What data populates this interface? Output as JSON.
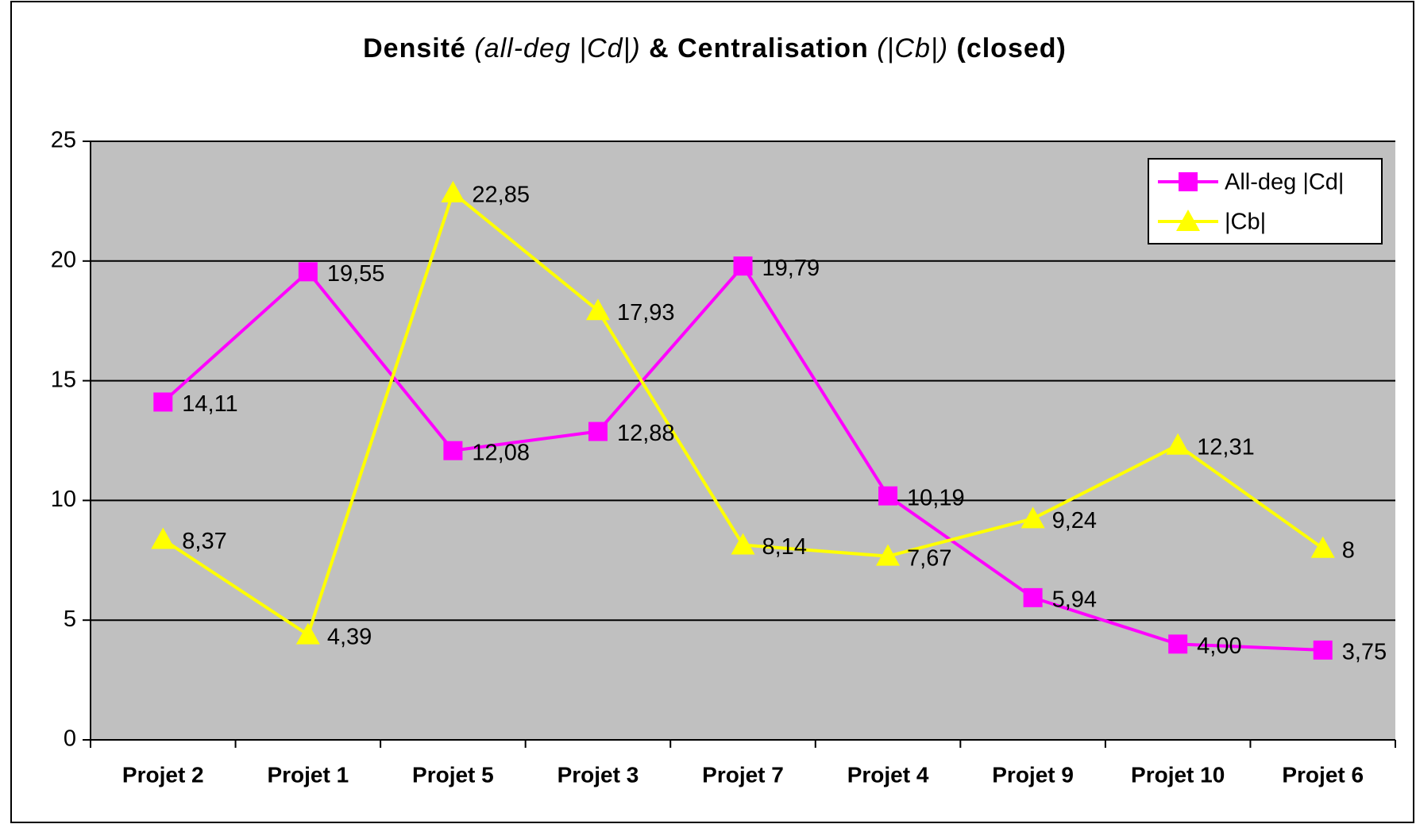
{
  "chart_data": {
    "type": "line",
    "title": [
      "Densité ",
      "(all-deg |Cd|)",
      " & Centralisation ",
      "(|Cb|)",
      " (closed)"
    ],
    "categories": [
      "Projet 2",
      "Projet 1",
      "Projet 5",
      "Projet 3",
      "Projet 7",
      "Projet 4",
      "Projet 9",
      "Projet 10",
      "Projet 6"
    ],
    "series": [
      {
        "name": "All-deg |Cd|",
        "color": "#ff00ff",
        "marker": "square",
        "values": [
          14.11,
          19.55,
          12.08,
          12.88,
          19.79,
          10.19,
          5.94,
          4.0,
          3.75
        ],
        "value_labels": [
          "14,11",
          "19,55",
          "12,08",
          "12,88",
          "19,79",
          "10,19",
          "5,94",
          "4,00",
          "3,75"
        ]
      },
      {
        "name": "|Cb|",
        "color": "#ffff00",
        "marker": "triangle",
        "values": [
          8.37,
          4.39,
          22.85,
          17.93,
          8.14,
          7.67,
          9.24,
          12.31,
          8
        ],
        "value_labels": [
          "8,37",
          "4,39",
          "22,85",
          "17,93",
          "8,14",
          "7,67",
          "9,24",
          "12,31",
          "8"
        ]
      }
    ],
    "ylim": [
      0,
      25
    ],
    "yticks": [
      0,
      5,
      10,
      15,
      20,
      25
    ],
    "grid": true,
    "legend": "top-right"
  }
}
